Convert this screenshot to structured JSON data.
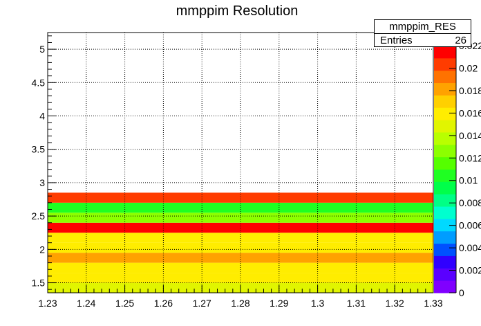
{
  "chart_data": {
    "type": "heatmap",
    "title": "mmppim Resolution",
    "xlabel": "",
    "ylabel": "",
    "xlim": [
      1.23,
      1.33
    ],
    "ylim": [
      1.35,
      5.25
    ],
    "x_ticks": [
      "1.23",
      "1.24",
      "1.25",
      "1.26",
      "1.27",
      "1.28",
      "1.29",
      "1.3",
      "1.31",
      "1.32",
      "1.33"
    ],
    "y_ticks": [
      "1.5",
      "2",
      "2.5",
      "3",
      "3.5",
      "4",
      "4.5",
      "5"
    ],
    "grid": true,
    "bins": [
      {
        "y0": 1.35,
        "y1": 1.5,
        "value": 0.0165,
        "color": "#e1f500"
      },
      {
        "y0": 1.5,
        "y1": 1.65,
        "value": 0.0175,
        "color": "#ffed00"
      },
      {
        "y0": 1.65,
        "y1": 1.8,
        "value": 0.0178,
        "color": "#ffed00"
      },
      {
        "y0": 1.8,
        "y1": 1.95,
        "value": 0.0195,
        "color": "#ffa200"
      },
      {
        "y0": 1.95,
        "y1": 2.1,
        "value": 0.0178,
        "color": "#ffed00"
      },
      {
        "y0": 2.1,
        "y1": 2.25,
        "value": 0.0176,
        "color": "#ffed00"
      },
      {
        "y0": 2.25,
        "y1": 2.4,
        "value": 0.0222,
        "color": "#ff0000"
      },
      {
        "y0": 2.4,
        "y1": 2.55,
        "value": 0.0152,
        "color": "#8cff00"
      },
      {
        "y0": 2.55,
        "y1": 2.7,
        "value": 0.0132,
        "color": "#1fff22"
      },
      {
        "y0": 2.7,
        "y1": 2.85,
        "value": 0.0212,
        "color": "#ff3c00"
      }
    ],
    "colorbar": {
      "min": 0,
      "max": 0.022,
      "tick_labels": [
        "0",
        "0.002",
        "0.004",
        "0.006",
        "0.008",
        "0.01",
        "0.012",
        "0.014",
        "0.016",
        "0.018",
        "0.02",
        "0.022"
      ],
      "colors": [
        "#8000ff",
        "#5a00ff",
        "#3000ff",
        "#0050ff",
        "#009dff",
        "#00d9ff",
        "#00ffcf",
        "#00ff86",
        "#00ff4a",
        "#1fff22",
        "#55ff00",
        "#8cff00",
        "#b9ff00",
        "#e1f500",
        "#ffed00",
        "#ffd000",
        "#ffa200",
        "#ff7200",
        "#ff3c00",
        "#ff0000"
      ]
    }
  },
  "stats": {
    "name": "mmppim_RES",
    "entries_label": "Entries",
    "entries_value": "26"
  }
}
